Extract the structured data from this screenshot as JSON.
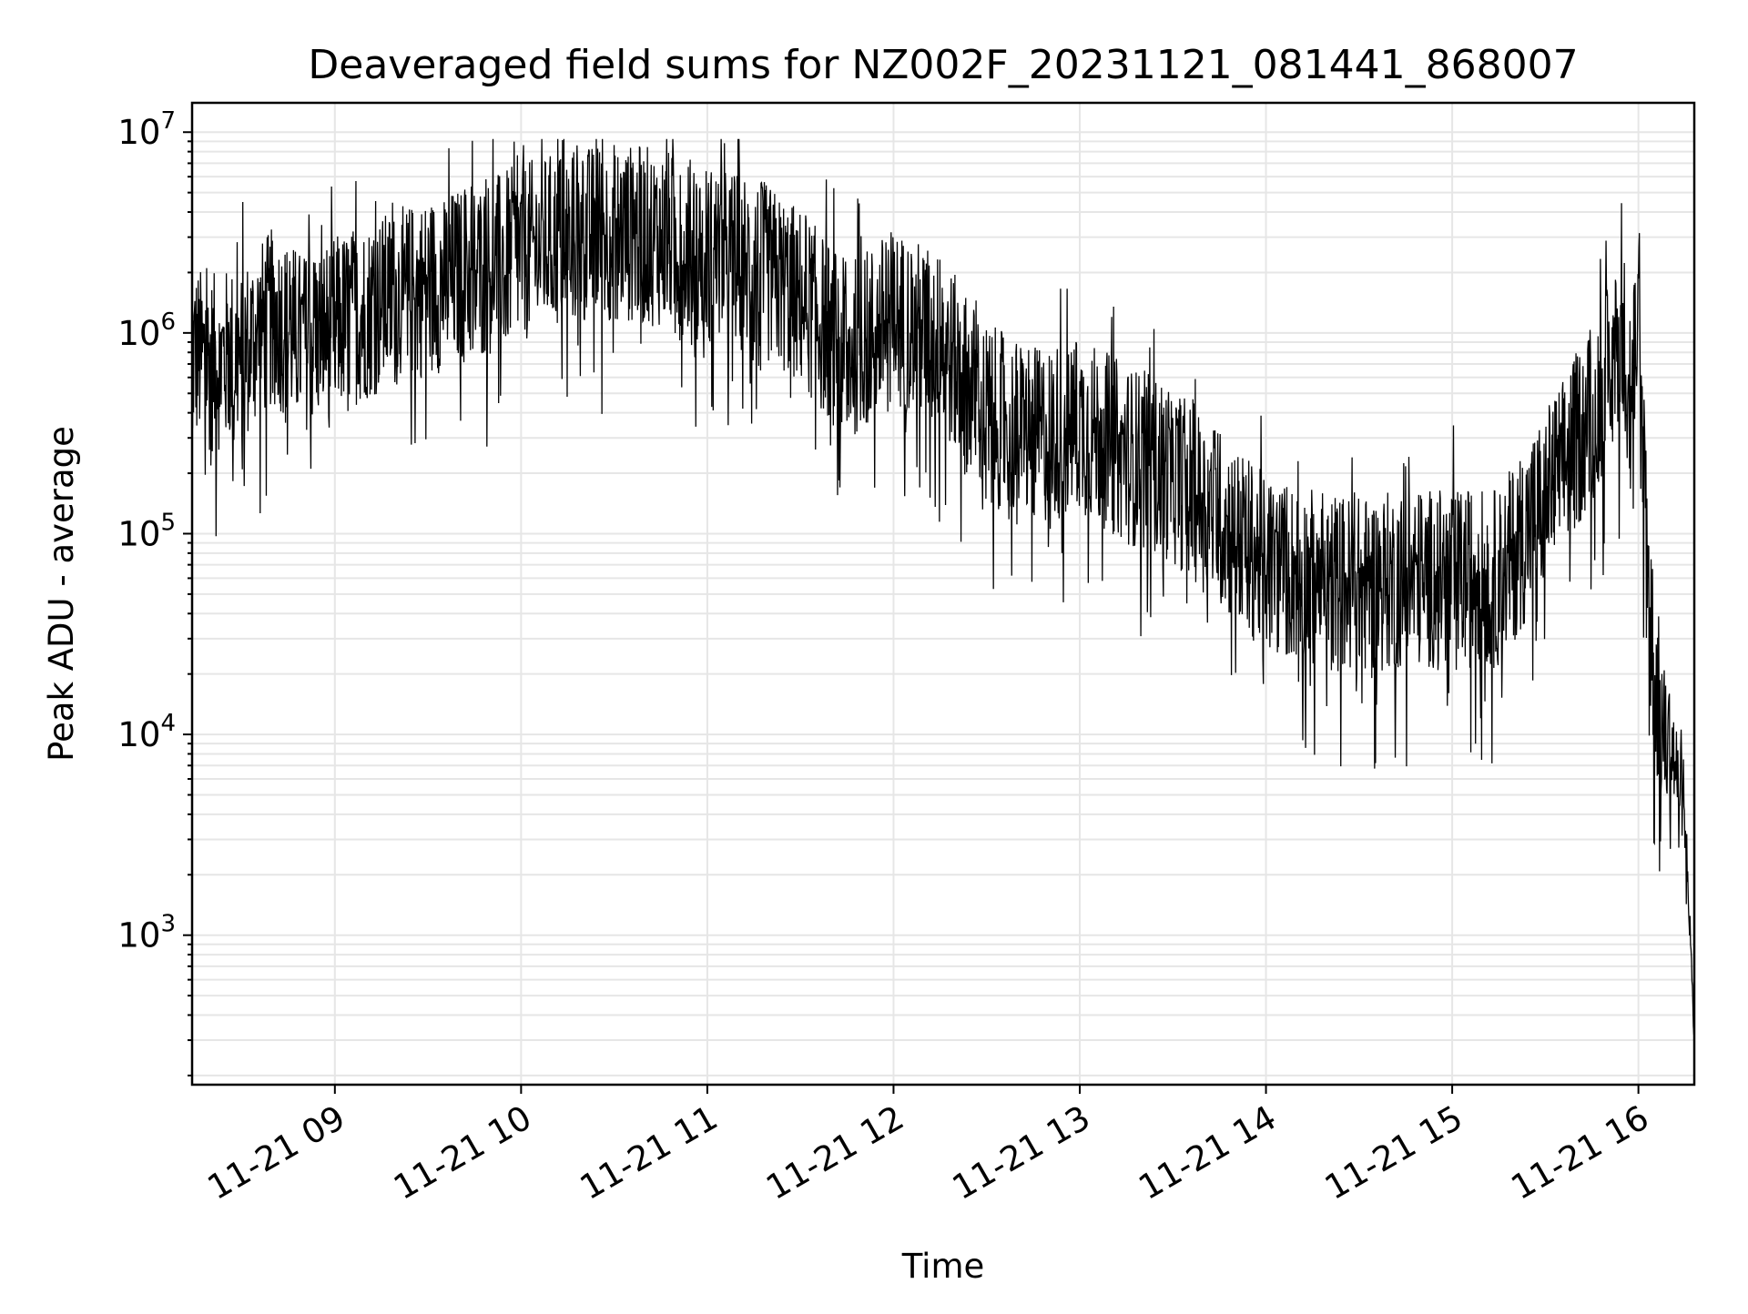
{
  "chart_data": {
    "type": "line",
    "title": "Deaveraged field sums for NZ002F_20231121_081441_868007",
    "xlabel": "Time",
    "ylabel": "Peak ADU - average",
    "x_scale": "time",
    "y_scale": "log",
    "xlim": [
      "2023-11-21 08:14",
      "2023-11-21 16:18"
    ],
    "ylim": [
      180,
      14000000
    ],
    "grid": true,
    "line_color": "#000000",
    "x_ticks": [
      {
        "value": "2023-11-21 09:00",
        "label": "11-21 09"
      },
      {
        "value": "2023-11-21 10:00",
        "label": "11-21 10"
      },
      {
        "value": "2023-11-21 11:00",
        "label": "11-21 11"
      },
      {
        "value": "2023-11-21 12:00",
        "label": "11-21 12"
      },
      {
        "value": "2023-11-21 13:00",
        "label": "11-21 13"
      },
      {
        "value": "2023-11-21 14:00",
        "label": "11-21 14"
      },
      {
        "value": "2023-11-21 15:00",
        "label": "11-21 15"
      },
      {
        "value": "2023-11-21 16:00",
        "label": "11-21 16"
      }
    ],
    "y_ticks": [
      {
        "value": 1000,
        "base": "10",
        "exp": "3"
      },
      {
        "value": 10000,
        "base": "10",
        "exp": "4"
      },
      {
        "value": 100000,
        "base": "10",
        "exp": "5"
      },
      {
        "value": 1000000,
        "base": "10",
        "exp": "6"
      },
      {
        "value": 10000000,
        "base": "10",
        "exp": "7"
      }
    ],
    "series": [
      {
        "x": [
          "2023-11-21 08:14",
          "2023-11-21 08:20",
          "2023-11-21 08:30",
          "2023-11-21 08:40",
          "2023-11-21 08:50",
          "2023-11-21 09:00",
          "2023-11-21 09:15",
          "2023-11-21 09:30",
          "2023-11-21 09:45",
          "2023-11-21 10:00",
          "2023-11-21 10:15",
          "2023-11-21 10:30",
          "2023-11-21 10:45",
          "2023-11-21 11:00",
          "2023-11-21 11:15",
          "2023-11-21 11:30",
          "2023-11-21 11:45",
          "2023-11-21 12:00",
          "2023-11-21 12:15",
          "2023-11-21 12:30",
          "2023-11-21 12:45",
          "2023-11-21 13:00",
          "2023-11-21 13:15",
          "2023-11-21 13:30",
          "2023-11-21 13:45",
          "2023-11-21 14:00",
          "2023-11-21 14:15",
          "2023-11-21 14:30",
          "2023-11-21 14:45",
          "2023-11-21 15:00",
          "2023-11-21 15:15",
          "2023-11-21 15:30",
          "2023-11-21 15:45",
          "2023-11-21 15:55",
          "2023-11-21 16:00",
          "2023-11-21 16:02",
          "2023-11-21 16:05",
          "2023-11-21 16:08",
          "2023-11-21 16:11",
          "2023-11-21 16:14",
          "2023-11-21 16:16",
          "2023-11-21 16:17",
          "2023-11-21 16:18"
        ],
        "y": [
          800000,
          700000,
          800000,
          1200000,
          900000,
          1100000,
          1400000,
          1700000,
          2000000,
          2500000,
          3000000,
          3200000,
          3000000,
          2500000,
          2200000,
          1500000,
          800000,
          1200000,
          900000,
          400000,
          300000,
          350000,
          250000,
          200000,
          120000,
          70000,
          60000,
          55000,
          60000,
          60000,
          60000,
          150000,
          400000,
          900000,
          800000,
          200000,
          20000,
          10000,
          8000,
          5000,
          2000,
          800,
          300
        ]
      }
    ]
  }
}
